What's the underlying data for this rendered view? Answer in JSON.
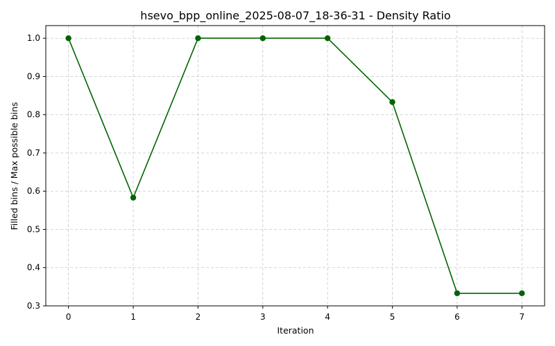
{
  "chart_data": {
    "type": "line",
    "title": "hsevo_bpp_online_2025-08-07_18-36-31 - Density Ratio",
    "xlabel": "Iteration",
    "ylabel": "Filled bins / Max possible bins",
    "x": [
      0,
      1,
      2,
      3,
      4,
      5,
      6,
      7
    ],
    "xticks": [
      "0",
      "1",
      "2",
      "3",
      "4",
      "5",
      "6",
      "7"
    ],
    "yticks": [
      "0.3",
      "0.4",
      "0.5",
      "0.6",
      "0.7",
      "0.8",
      "0.9",
      "1.0"
    ],
    "xlim": [
      -0.35,
      7.35
    ],
    "ylim": [
      0.3,
      1.033
    ],
    "series": [
      {
        "values": [
          1.0,
          0.583,
          1.0,
          1.0,
          1.0,
          0.833,
          0.333,
          0.333
        ],
        "color": "#006400",
        "marker": "circle"
      }
    ],
    "grid": true
  }
}
